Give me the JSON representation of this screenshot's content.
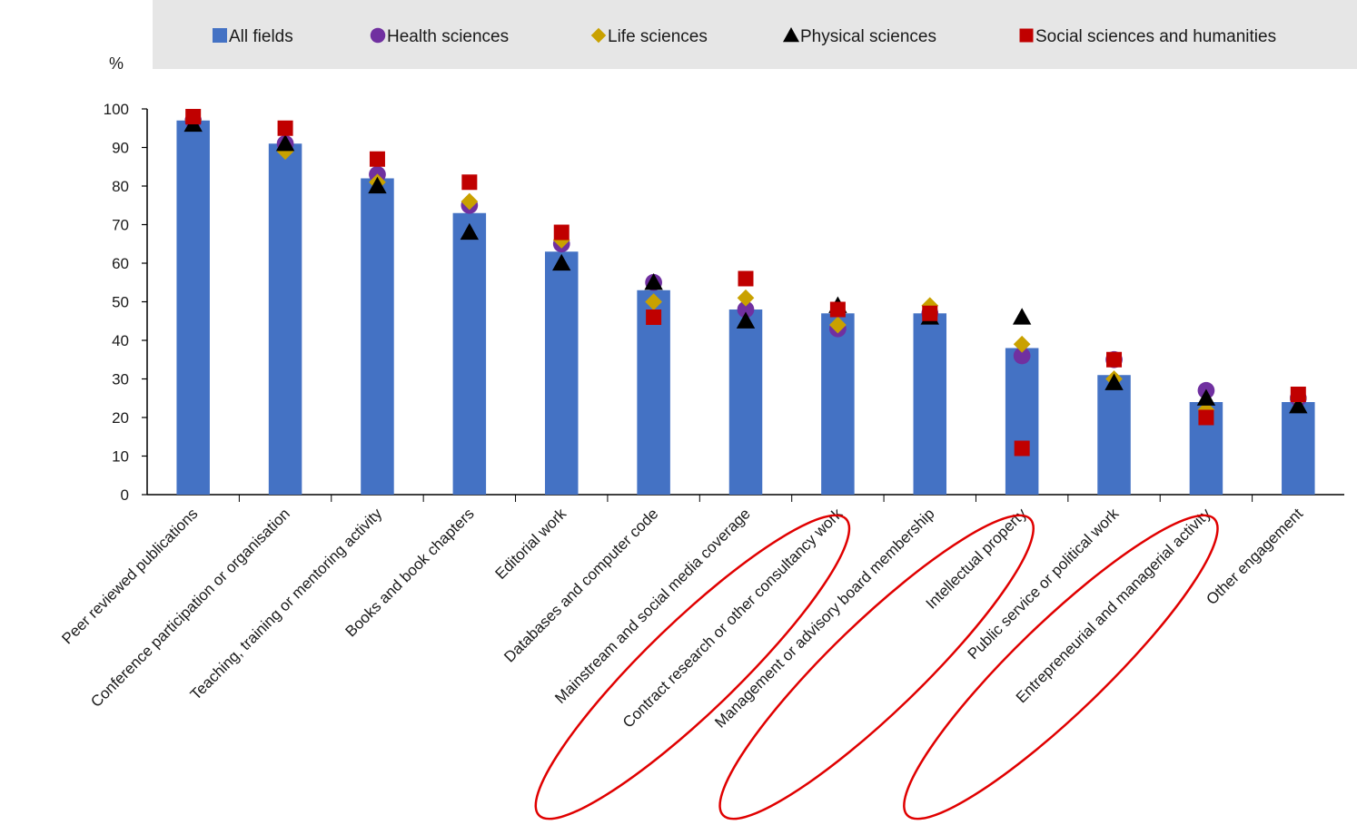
{
  "chart_data": {
    "type": "bar",
    "title": "",
    "xlabel": "",
    "ylabel": "%",
    "ylim": [
      0,
      100
    ],
    "yticks": [
      0,
      10,
      20,
      30,
      40,
      50,
      60,
      70,
      80,
      90,
      100
    ],
    "grid": false,
    "legend_position": "top",
    "categories": [
      "Peer reviewed publications",
      "Conference participation or organisation",
      "Teaching, training or mentoring activity",
      "Books and book chapters",
      "Editorial work",
      "Databases and computer code",
      "Mainstream and social media coverage",
      "Contract research or other consultancy work",
      "Management or advisory board membership",
      "Intellectual property",
      "Public service or political work",
      "Entrepreneurial and managerial activity",
      "Other engagement"
    ],
    "series": [
      {
        "name": "All fields",
        "kind": "bar",
        "marker": "square",
        "color": "#4472C4",
        "values": [
          97,
          91,
          82,
          73,
          63,
          53,
          48,
          47,
          47,
          38,
          31,
          24,
          24
        ]
      },
      {
        "name": "Health sciences",
        "kind": "marker",
        "marker": "circle",
        "color": "#7030A0",
        "values": [
          97,
          91,
          83,
          75,
          65,
          55,
          48,
          43,
          47,
          36,
          35,
          27,
          25
        ]
      },
      {
        "name": "Life sciences",
        "kind": "marker",
        "marker": "diamond",
        "color": "#C9A100",
        "values": [
          97,
          89,
          81,
          76,
          66,
          50,
          51,
          44,
          49,
          39,
          30,
          22,
          25
        ]
      },
      {
        "name": "Physical sciences",
        "kind": "marker",
        "marker": "triangle",
        "color": "#000000",
        "values": [
          96,
          91,
          80,
          68,
          60,
          55,
          45,
          49,
          46,
          46,
          29,
          25,
          23
        ]
      },
      {
        "name": "Social sciences and humanities",
        "kind": "marker",
        "marker": "square",
        "color": "#C00000",
        "values": [
          98,
          95,
          87,
          81,
          68,
          46,
          56,
          48,
          47,
          12,
          35,
          20,
          26
        ]
      }
    ],
    "annotations": [
      {
        "type": "ellipse",
        "color": "#E00000",
        "encloses": "Contract research or other consultancy work"
      },
      {
        "type": "ellipse",
        "color": "#E00000",
        "encloses": "Intellectual property"
      },
      {
        "type": "ellipse",
        "color": "#E00000",
        "encloses": "Entrepreneurial and managerial activity"
      }
    ]
  }
}
